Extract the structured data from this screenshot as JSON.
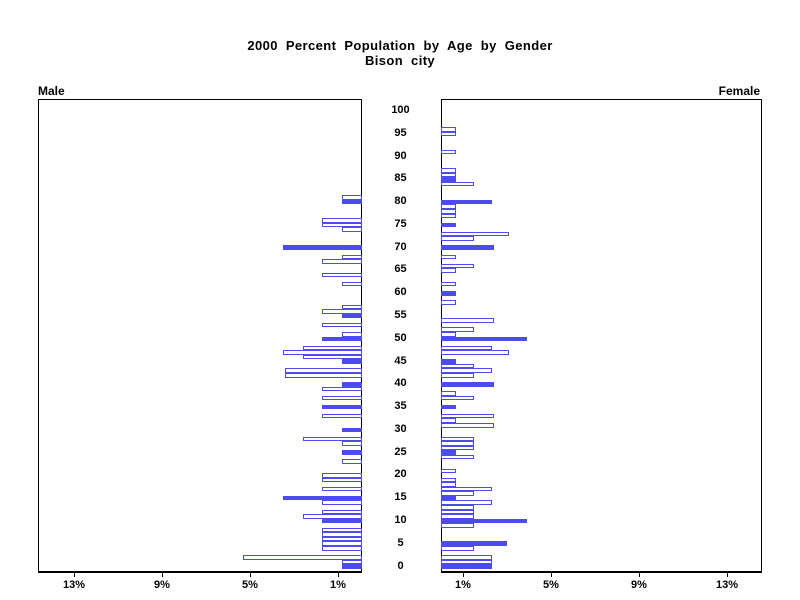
{
  "title": {
    "line1": "2000 Percent Population by Age by Gender",
    "line2": "Bison city"
  },
  "panels": {
    "left_header": "Male",
    "right_header": "Female"
  },
  "axis": {
    "age_tick_labels": [
      0,
      5,
      10,
      15,
      20,
      25,
      30,
      35,
      40,
      45,
      50,
      55,
      60,
      65,
      70,
      75,
      80,
      85,
      90,
      95,
      100
    ],
    "pct_ticks": [
      1,
      5,
      9,
      13
    ],
    "pct_tick_labels": [
      "1%",
      "5%",
      "9%",
      "13%"
    ]
  },
  "colors": {
    "bar_blue": "#4b4bee",
    "bar_outline": "#4b4bee",
    "frame": "#000000",
    "text": "#000000",
    "background": "#ffffff"
  },
  "chart_data": {
    "type": "bar",
    "subtype": "population-pyramid",
    "title": "2000 Percent Population by Age by Gender",
    "subtitle": "Bison city",
    "unit": "percent of population",
    "x_axis_ticks_percent": [
      1,
      5,
      9,
      13
    ],
    "xlim_each_side": [
      0,
      14.6
    ],
    "y_axis": "single year of age, 0 to 100 (labeled every 5 years)",
    "bar_format": "[age, percent, highlighted_blue(1)/white_outline(0)]; ages not listed have 0%",
    "series": [
      {
        "name": "Male",
        "side": "left",
        "bars": [
          [
            0,
            0.9,
            1
          ],
          [
            1,
            0.9,
            0
          ],
          [
            2,
            5.4,
            0
          ],
          [
            4,
            1.8,
            0
          ],
          [
            5,
            1.8,
            0
          ],
          [
            6,
            1.8,
            0
          ],
          [
            7,
            1.8,
            0
          ],
          [
            8,
            1.8,
            0
          ],
          [
            10,
            1.8,
            1
          ],
          [
            11,
            2.7,
            0
          ],
          [
            12,
            1.8,
            0
          ],
          [
            14,
            1.8,
            0
          ],
          [
            15,
            3.6,
            1
          ],
          [
            17,
            1.8,
            0
          ],
          [
            19,
            1.8,
            0
          ],
          [
            20,
            1.8,
            0
          ],
          [
            23,
            0.9,
            0
          ],
          [
            25,
            0.9,
            1
          ],
          [
            27,
            0.9,
            0
          ],
          [
            28,
            2.7,
            0
          ],
          [
            30,
            0.9,
            1
          ],
          [
            33,
            1.8,
            0
          ],
          [
            35,
            1.8,
            1
          ],
          [
            37,
            1.8,
            0
          ],
          [
            39,
            1.8,
            0
          ],
          [
            40,
            0.9,
            1
          ],
          [
            42,
            3.5,
            0
          ],
          [
            43,
            3.5,
            0
          ],
          [
            45,
            0.9,
            1
          ],
          [
            46,
            2.7,
            0
          ],
          [
            47,
            3.6,
            0
          ],
          [
            48,
            2.7,
            0
          ],
          [
            50,
            1.8,
            1
          ],
          [
            51,
            0.9,
            0
          ],
          [
            53,
            1.8,
            0
          ],
          [
            55,
            0.9,
            1
          ],
          [
            56,
            1.8,
            0
          ],
          [
            57,
            0.9,
            0
          ],
          [
            62,
            0.9,
            0
          ],
          [
            64,
            1.8,
            0
          ],
          [
            67,
            1.8,
            0
          ],
          [
            68,
            0.9,
            0
          ],
          [
            70,
            3.6,
            1
          ],
          [
            74,
            0.9,
            0
          ],
          [
            75,
            1.8,
            0
          ],
          [
            76,
            1.8,
            0
          ],
          [
            80,
            0.9,
            1
          ],
          [
            81,
            0.9,
            0
          ]
        ]
      },
      {
        "name": "Female",
        "side": "right",
        "bars": [
          [
            0,
            2.3,
            1
          ],
          [
            1,
            2.3,
            0
          ],
          [
            2,
            2.3,
            0
          ],
          [
            4,
            1.5,
            0
          ],
          [
            5,
            3.0,
            1
          ],
          [
            9,
            1.5,
            0
          ],
          [
            10,
            3.9,
            1
          ],
          [
            11,
            1.5,
            0
          ],
          [
            12,
            1.5,
            0
          ],
          [
            13,
            1.5,
            0
          ],
          [
            14,
            2.3,
            0
          ],
          [
            15,
            0.7,
            1
          ],
          [
            16,
            1.5,
            0
          ],
          [
            17,
            2.3,
            0
          ],
          [
            18,
            0.7,
            0
          ],
          [
            19,
            0.7,
            0
          ],
          [
            21,
            0.7,
            0
          ],
          [
            24,
            1.5,
            0
          ],
          [
            25,
            0.7,
            1
          ],
          [
            26,
            1.5,
            0
          ],
          [
            27,
            1.5,
            0
          ],
          [
            28,
            1.5,
            0
          ],
          [
            31,
            2.4,
            0
          ],
          [
            32,
            0.7,
            0
          ],
          [
            33,
            2.4,
            0
          ],
          [
            35,
            0.7,
            1
          ],
          [
            37,
            1.5,
            0
          ],
          [
            38,
            0.7,
            0
          ],
          [
            40,
            2.4,
            1
          ],
          [
            42,
            1.5,
            0
          ],
          [
            43,
            2.3,
            0
          ],
          [
            44,
            1.5,
            0
          ],
          [
            45,
            0.7,
            1
          ],
          [
            47,
            3.1,
            0
          ],
          [
            48,
            2.3,
            0
          ],
          [
            50,
            3.9,
            1
          ],
          [
            51,
            0.7,
            0
          ],
          [
            52,
            1.5,
            0
          ],
          [
            54,
            2.4,
            0
          ],
          [
            58,
            0.7,
            0
          ],
          [
            60,
            0.7,
            1
          ],
          [
            62,
            0.7,
            0
          ],
          [
            65,
            0.7,
            0
          ],
          [
            66,
            1.5,
            0
          ],
          [
            68,
            0.7,
            0
          ],
          [
            70,
            2.4,
            1
          ],
          [
            72,
            1.5,
            0
          ],
          [
            73,
            3.1,
            0
          ],
          [
            75,
            0.7,
            1
          ],
          [
            77,
            0.7,
            0
          ],
          [
            78,
            0.7,
            0
          ],
          [
            79,
            0.7,
            0
          ],
          [
            80,
            2.3,
            1
          ],
          [
            84,
            1.5,
            0
          ],
          [
            85,
            0.7,
            1
          ],
          [
            86,
            0.7,
            0
          ],
          [
            87,
            0.7,
            0
          ],
          [
            91,
            0.7,
            0
          ],
          [
            95,
            0.7,
            0
          ],
          [
            96,
            0.7,
            0
          ]
        ]
      }
    ]
  }
}
